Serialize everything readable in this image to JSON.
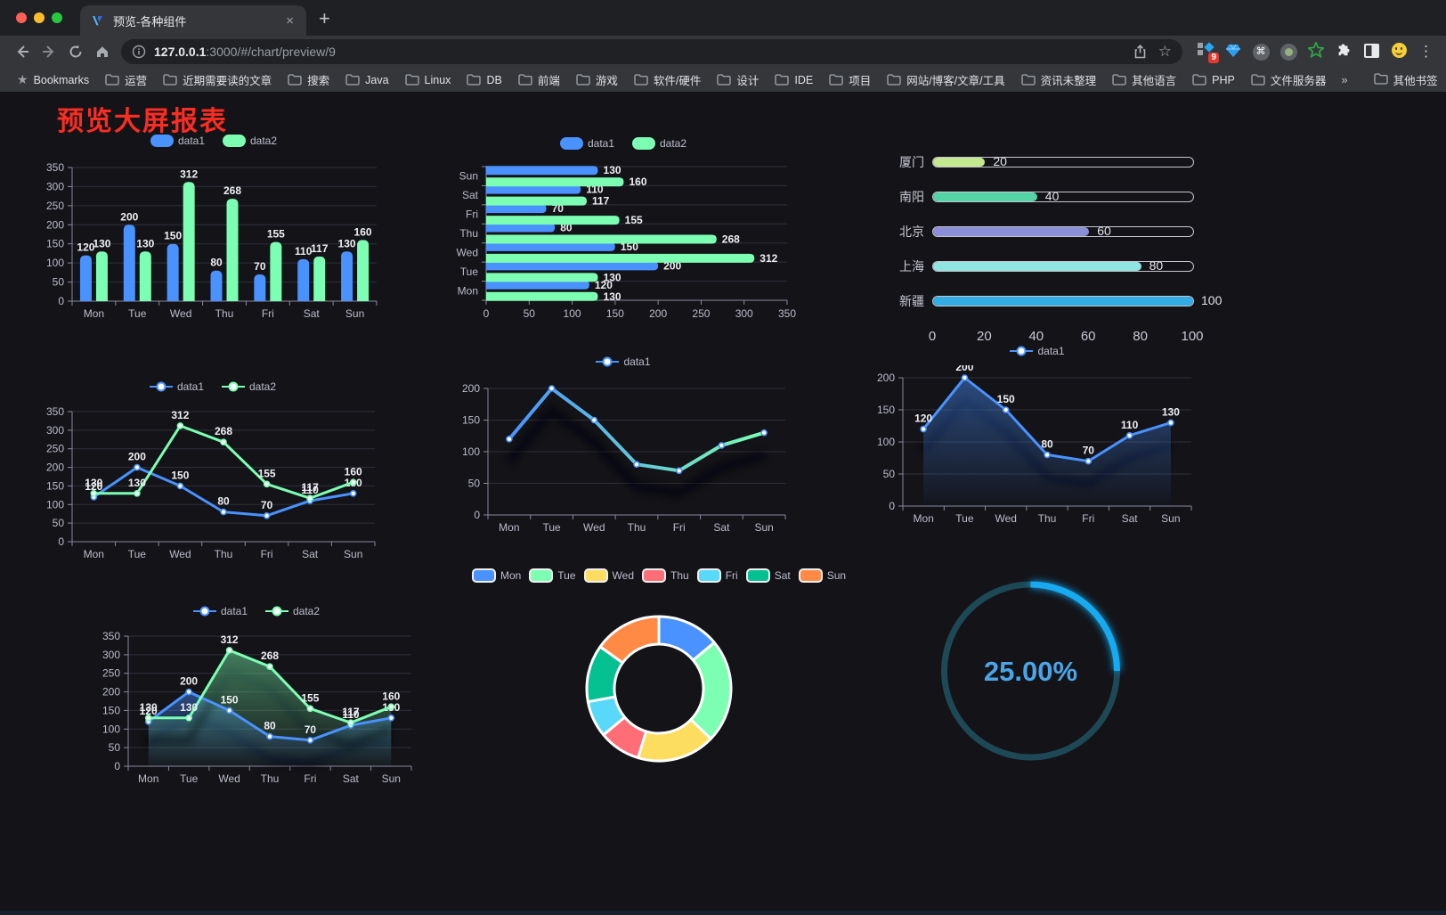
{
  "browser": {
    "tab_title": "预览-各种组件",
    "url_host": "127.0.0.1",
    "url_rest": ":3000/#/chart/preview/9",
    "bookmarks_label": "Bookmarks",
    "bookmark_folders": [
      "运营",
      "近期需要读的文章",
      "搜索",
      "Java",
      "Linux",
      "DB",
      "前端",
      "游戏",
      "软件/硬件",
      "设计",
      "IDE",
      "项目",
      "网站/博客/文章/工具",
      "资讯未整理",
      "其他语言",
      "PHP",
      "文件服务器"
    ],
    "bookmarks_overflow": "»",
    "other_bookmarks": "其他书签",
    "extension_icons": [
      {
        "name": "grid-extension-icon",
        "badge": "9"
      },
      {
        "name": "gem-extension-icon"
      },
      {
        "name": "command-extension-icon"
      },
      {
        "name": "record-extension-icon"
      },
      {
        "name": "green-star-extension-icon"
      },
      {
        "name": "puzzle-extension-icon"
      },
      {
        "name": "reading-mode-extension-icon"
      },
      {
        "name": "emoji-extension-icon"
      }
    ]
  },
  "page": {
    "title": "预览大屏报表",
    "title_color": "#f92d22",
    "background": "#131318"
  },
  "chart_data": [
    {
      "id": "bar-grouped",
      "type": "bar",
      "categories": [
        "Mon",
        "Tue",
        "Wed",
        "Thu",
        "Fri",
        "Sat",
        "Sun"
      ],
      "series": [
        {
          "name": "data1",
          "color": "#4992ff",
          "values": [
            120,
            200,
            150,
            80,
            70,
            110,
            130
          ]
        },
        {
          "name": "data2",
          "color": "#7cffb2",
          "values": [
            130,
            130,
            312,
            268,
            155,
            117,
            160
          ]
        }
      ],
      "ylim": [
        0,
        350
      ],
      "ystep": 50,
      "labels": true,
      "grid": true,
      "legend_position": "top"
    },
    {
      "id": "bar-horizontal",
      "type": "bar-horizontal",
      "categories": [
        "Mon",
        "Tue",
        "Wed",
        "Thu",
        "Fri",
        "Sat",
        "Sun"
      ],
      "series": [
        {
          "name": "data1",
          "color": "#4992ff",
          "values": [
            120,
            200,
            150,
            80,
            70,
            110,
            130
          ]
        },
        {
          "name": "data2",
          "color": "#7cffb2",
          "values": [
            130,
            130,
            312,
            268,
            155,
            117,
            160
          ]
        }
      ],
      "xlim": [
        0,
        350
      ],
      "xstep": 50,
      "labels": true,
      "grid": true,
      "legend_position": "top"
    },
    {
      "id": "progress",
      "type": "progress",
      "items": [
        {
          "label": "厦门",
          "value": 20,
          "color": "#c3e88d"
        },
        {
          "label": "南阳",
          "value": 40,
          "color": "#53d3a6"
        },
        {
          "label": "北京",
          "value": 60,
          "color": "#8a8fd8"
        },
        {
          "label": "上海",
          "value": 80,
          "color": "#8fe5e0"
        },
        {
          "label": "新疆",
          "value": 100,
          "color": "#33ace5"
        }
      ],
      "xticks": [
        0,
        20,
        40,
        60,
        80,
        100
      ],
      "xlim": [
        0,
        100
      ]
    },
    {
      "id": "line-dual",
      "type": "line",
      "categories": [
        "Mon",
        "Tue",
        "Wed",
        "Thu",
        "Fri",
        "Sat",
        "Sun"
      ],
      "series": [
        {
          "name": "data1",
          "color": "#4992ff",
          "values": [
            120,
            200,
            150,
            80,
            70,
            110,
            130
          ]
        },
        {
          "name": "data2",
          "color": "#7cffb2",
          "values": [
            130,
            130,
            312,
            268,
            155,
            117,
            160
          ]
        }
      ],
      "ylim": [
        0,
        350
      ],
      "ystep": 50,
      "labels": true,
      "grid": true,
      "legend_position": "top"
    },
    {
      "id": "line-gradient",
      "type": "line",
      "categories": [
        "Mon",
        "Tue",
        "Wed",
        "Thu",
        "Fri",
        "Sat",
        "Sun"
      ],
      "series": [
        {
          "name": "data1",
          "gradient": [
            "#4992ff",
            "#7cffb2"
          ],
          "values": [
            120,
            200,
            150,
            80,
            70,
            110,
            130
          ]
        }
      ],
      "ylim": [
        0,
        200
      ],
      "ystep": 50,
      "labels": false,
      "shadow": true,
      "lw": 4,
      "grid": true,
      "legend_position": "top"
    },
    {
      "id": "area-single",
      "type": "line",
      "categories": [
        "Mon",
        "Tue",
        "Wed",
        "Thu",
        "Fri",
        "Sat",
        "Sun"
      ],
      "series": [
        {
          "name": "data1",
          "color": "#4992ff",
          "area": true,
          "values": [
            120,
            200,
            150,
            80,
            70,
            110,
            130
          ]
        }
      ],
      "ylim": [
        0,
        200
      ],
      "ystep": 50,
      "labels": true,
      "shadow": true,
      "grid": true,
      "legend_position": "top"
    },
    {
      "id": "area-dual",
      "type": "line",
      "categories": [
        "Mon",
        "Tue",
        "Wed",
        "Thu",
        "Fri",
        "Sat",
        "Sun"
      ],
      "series": [
        {
          "name": "data1",
          "color": "#4992ff",
          "area": true,
          "values": [
            120,
            200,
            150,
            80,
            70,
            110,
            130
          ]
        },
        {
          "name": "data2",
          "color": "#7cffb2",
          "area": true,
          "values": [
            130,
            130,
            312,
            268,
            155,
            117,
            160
          ]
        }
      ],
      "ylim": [
        0,
        350
      ],
      "ystep": 50,
      "labels": true,
      "shadow": true,
      "grid": true,
      "legend_position": "top"
    },
    {
      "id": "donut",
      "type": "pie",
      "items": [
        {
          "label": "Mon",
          "value": 120,
          "color": "#4992ff"
        },
        {
          "label": "Tue",
          "value": 200,
          "color": "#7cffb2"
        },
        {
          "label": "Wed",
          "value": 150,
          "color": "#fddd60"
        },
        {
          "label": "Thu",
          "value": 80,
          "color": "#ff6e76"
        },
        {
          "label": "Fri",
          "value": 70,
          "color": "#58d9f9"
        },
        {
          "label": "Sat",
          "value": 110,
          "color": "#05c091"
        },
        {
          "label": "Sun",
          "value": 130,
          "color": "#ff8a45"
        }
      ],
      "legend_position": "top"
    },
    {
      "id": "gauge",
      "type": "gauge",
      "value": 25,
      "display": "25.00%",
      "color": "#14aaf0",
      "track": "#1d4855",
      "text_color": "#4aa4e6"
    }
  ]
}
